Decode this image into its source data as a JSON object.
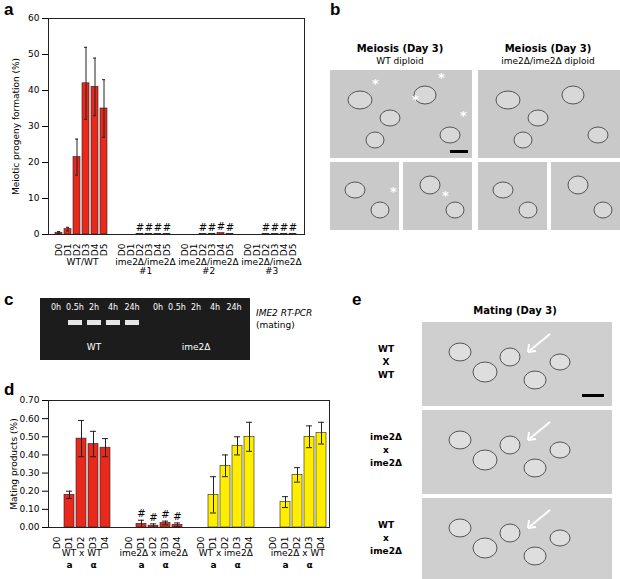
{
  "chart_data": [
    {
      "type": "bar",
      "panel_label": "a",
      "ylabel": "Meiotic progeny formation (%)",
      "ylim": [
        0,
        60
      ],
      "yticks": [
        0,
        10,
        20,
        30,
        40,
        50,
        60
      ],
      "series": [
        {
          "name": "WT/WT",
          "color": "#e8291c",
          "categories": [
            "D0",
            "D1",
            "D2",
            "D3",
            "D4",
            "D5"
          ],
          "values": [
            0.5,
            1.5,
            21.5,
            42,
            41,
            35
          ],
          "errors": [
            0.3,
            0.5,
            5,
            10,
            8,
            8
          ],
          "annotations": [
            null,
            null,
            null,
            null,
            null,
            null
          ]
        },
        {
          "name": "ime2Δ/ime2Δ\n#1",
          "color": "#e8291c",
          "categories": [
            "D0",
            "D1",
            "D2",
            "D3",
            "D4",
            "D5"
          ],
          "values": [
            0,
            0,
            0.1,
            0.1,
            0.1,
            0.1
          ],
          "errors": [
            0,
            0,
            0,
            0,
            0,
            0
          ],
          "annotations": [
            null,
            null,
            "#",
            "#",
            "#",
            "#"
          ]
        },
        {
          "name": "ime2Δ/ime2Δ\n#2",
          "color": "#e8291c",
          "categories": [
            "D0",
            "D1",
            "D2",
            "D3",
            "D4",
            "D5"
          ],
          "values": [
            0,
            0,
            0.1,
            0.2,
            0.4,
            0.2
          ],
          "errors": [
            0,
            0,
            0,
            0,
            0,
            0
          ],
          "annotations": [
            null,
            null,
            "#",
            "#",
            "#",
            "#"
          ]
        },
        {
          "name": "ime2Δ/ime2Δ\n#3",
          "color": "#e8291c",
          "categories": [
            "D0",
            "D1",
            "D2",
            "D3",
            "D4",
            "D5"
          ],
          "values": [
            0,
            0,
            0.1,
            0.1,
            0.2,
            0.2
          ],
          "errors": [
            0,
            0,
            0,
            0,
            0,
            0
          ],
          "annotations": [
            null,
            null,
            "#",
            "#",
            "#",
            "#"
          ]
        }
      ]
    },
    {
      "type": "bar",
      "panel_label": "d",
      "ylabel": "Mating products (%)",
      "ylim": [
        0,
        0.7
      ],
      "yticks": [
        0,
        0.1,
        0.2,
        0.3,
        0.4,
        0.5,
        0.6,
        0.7
      ],
      "series": [
        {
          "name": "WT x WT",
          "mating_types": [
            "a",
            "α"
          ],
          "color": "#e8291c",
          "categories": [
            "D0",
            "D1",
            "D2",
            "D3",
            "D4"
          ],
          "values": [
            0,
            0.18,
            0.49,
            0.46,
            0.44
          ],
          "errors": [
            0,
            0.02,
            0.1,
            0.07,
            0.05
          ],
          "annotations": [
            null,
            null,
            null,
            null,
            null
          ]
        },
        {
          "name": "ime2Δ x ime2Δ",
          "mating_types": [
            "a",
            "α"
          ],
          "color": "#e8291c",
          "categories": [
            "D0",
            "D1",
            "D2",
            "D3",
            "D4"
          ],
          "values": [
            0,
            0.02,
            0.01,
            0.025,
            0.015
          ],
          "errors": [
            0,
            0.02,
            0.01,
            0.01,
            0.01
          ],
          "annotations": [
            null,
            "#",
            "#",
            "#",
            "#"
          ]
        },
        {
          "name": "WT x ime2Δ",
          "mating_types": [
            "a",
            "α"
          ],
          "color": "#ffee00",
          "categories": [
            "D0",
            "D1",
            "D2",
            "D3",
            "D4"
          ],
          "values": [
            0,
            0.18,
            0.34,
            0.45,
            0.5
          ],
          "errors": [
            0,
            0.1,
            0.06,
            0.05,
            0.08
          ],
          "annotations": [
            null,
            null,
            null,
            null,
            null
          ]
        },
        {
          "name": "ime2Δ x WT",
          "mating_types": [
            "a",
            "α"
          ],
          "color": "#ffee00",
          "categories": [
            "D0",
            "D1",
            "D2",
            "D3",
            "D4"
          ],
          "values": [
            0,
            0.14,
            0.29,
            0.5,
            0.52
          ],
          "errors": [
            0,
            0.03,
            0.04,
            0.06,
            0.06
          ],
          "annotations": [
            null,
            null,
            null,
            null,
            null
          ]
        }
      ]
    }
  ],
  "panels": {
    "b": {
      "panel_label": "b",
      "columns": [
        {
          "title": "Meiosis (Day 3)",
          "subtitle": "WT diploid",
          "annotation": "*"
        },
        {
          "title": "Meiosis (Day 3)",
          "subtitle": "ime2Δ/ime2Δ diploid"
        }
      ]
    },
    "c": {
      "panel_label": "c",
      "title": "IME2 RT-PCR",
      "subtitle": "(mating)",
      "groups": [
        {
          "name": "WT",
          "lanes": [
            "0h",
            "0.5h",
            "2h",
            "4h",
            "24h"
          ],
          "bands": [
            false,
            true,
            true,
            true,
            true
          ]
        },
        {
          "name": "ime2Δ",
          "lanes": [
            "0h",
            "0.5h",
            "2h",
            "4h",
            "24h"
          ],
          "bands": [
            false,
            false,
            false,
            false,
            false
          ]
        }
      ]
    },
    "e": {
      "panel_label": "e",
      "title": "Mating (Day 3)",
      "rows": [
        [
          "WT",
          "X",
          "WT"
        ],
        [
          "ime2Δ",
          "x",
          "ime2Δ"
        ],
        [
          "WT",
          "x",
          "ime2Δ"
        ]
      ]
    }
  }
}
